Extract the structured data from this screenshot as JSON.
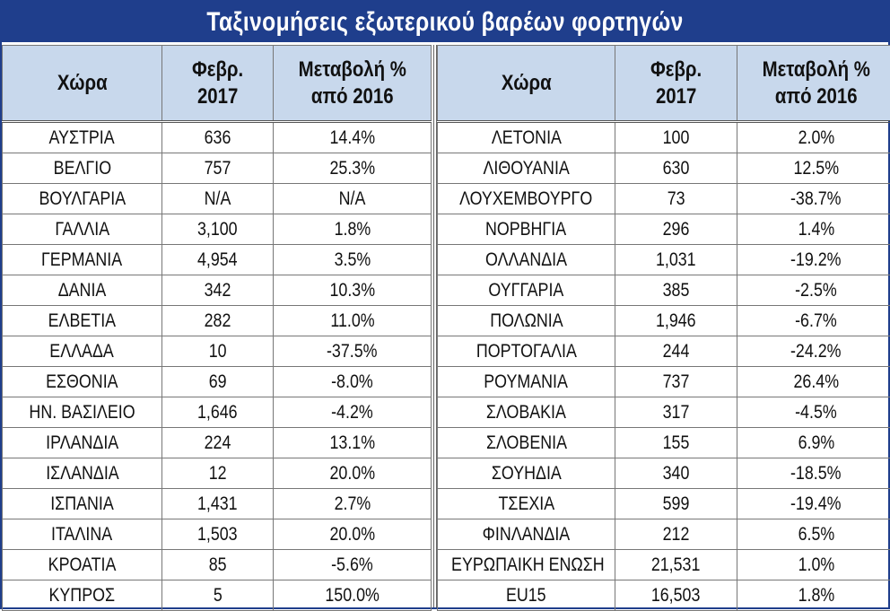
{
  "title": "Ταξινομήσεις εξωτερικού βαρέων φορτηγών",
  "headers": {
    "country": "Χώρα",
    "feb_line1": "Φεβρ.",
    "feb_line2": "2017",
    "change_line1": "Μεταβολή %",
    "change_line2": "από 2016"
  },
  "left_rows": [
    {
      "country": "ΑΥΣΤΡΙΑ",
      "feb": "636",
      "change": "14.4%"
    },
    {
      "country": "ΒΕΛΓΙΟ",
      "feb": "757",
      "change": "25.3%"
    },
    {
      "country": "ΒΟΥΛΓΑΡΙΑ",
      "feb": "N/A",
      "change": "N/A"
    },
    {
      "country": "ΓΑΛΛΙΑ",
      "feb": "3,100",
      "change": "1.8%"
    },
    {
      "country": "ΓΕΡΜΑΝΙΑ",
      "feb": "4,954",
      "change": "3.5%"
    },
    {
      "country": "ΔΑΝΙΑ",
      "feb": "342",
      "change": "10.3%"
    },
    {
      "country": "ΕΛΒΕΤΙΑ",
      "feb": "282",
      "change": "11.0%"
    },
    {
      "country": "ΕΛΛΑΔΑ",
      "feb": "10",
      "change": "-37.5%"
    },
    {
      "country": "ΕΣΘΟΝΙΑ",
      "feb": "69",
      "change": "-8.0%"
    },
    {
      "country": "ΗΝ. ΒΑΣΙΛΕΙΟ",
      "feb": "1,646",
      "change": "-4.2%"
    },
    {
      "country": "ΙΡΛΑΝΔΙΑ",
      "feb": "224",
      "change": "13.1%"
    },
    {
      "country": "ΙΣΛΑΝΔΙΑ",
      "feb": "12",
      "change": "20.0%"
    },
    {
      "country": "ΙΣΠΑΝΙΑ",
      "feb": "1,431",
      "change": "2.7%"
    },
    {
      "country": "ΙΤΑΛΙΝΑ",
      "feb": "1,503",
      "change": "20.0%"
    },
    {
      "country": "ΚΡΟΑΤΙΑ",
      "feb": "85",
      "change": "-5.6%"
    },
    {
      "country": "ΚΥΠΡΟΣ",
      "feb": "5",
      "change": "150.0%"
    }
  ],
  "right_rows": [
    {
      "country": "ΛΕΤΟΝΙΑ",
      "feb": "100",
      "change": "2.0%"
    },
    {
      "country": "ΛΙΘΟΥΑΝΙΑ",
      "feb": "630",
      "change": "12.5%"
    },
    {
      "country": "ΛΟΥΧΕΜΒΟΥΡΓΟ",
      "feb": "73",
      "change": "-38.7%"
    },
    {
      "country": "ΝΟΡΒΗΓΙΑ",
      "feb": "296",
      "change": "1.4%"
    },
    {
      "country": "ΟΛΛΑΝΔΙΑ",
      "feb": "1,031",
      "change": "-19.2%"
    },
    {
      "country": "ΟΥΓΓΑΡΙΑ",
      "feb": "385",
      "change": "-2.5%"
    },
    {
      "country": "ΠΟΛΩΝΙΑ",
      "feb": "1,946",
      "change": "-6.7%"
    },
    {
      "country": "ΠΟΡΤΟΓΑΛΙΑ",
      "feb": "244",
      "change": "-24.2%"
    },
    {
      "country": "ΡΟΥΜΑΝΙΑ",
      "feb": "737",
      "change": "26.4%"
    },
    {
      "country": "ΣΛΟΒΑΚΙΑ",
      "feb": "317",
      "change": "-4.5%"
    },
    {
      "country": "ΣΛΟΒΕΝΙΑ",
      "feb": "155",
      "change": "6.9%"
    },
    {
      "country": "ΣΟΥΗΔΙΑ",
      "feb": "340",
      "change": "-18.5%"
    },
    {
      "country": "ΤΣΕΧΙΑ",
      "feb": "599",
      "change": "-19.4%"
    },
    {
      "country": "ΦΙΝΛΑΝΔΙΑ",
      "feb": "212",
      "change": "6.5%"
    },
    {
      "country": "ΕΥΡΩΠΑΙΚΗ ΕΝΩΣΗ",
      "feb": "21,531",
      "change": "1.0%"
    },
    {
      "country": "EU15",
      "feb": "16,503",
      "change": "1.8%"
    }
  ],
  "colors": {
    "title_bg": "#1f3e8c",
    "header_bg": "#c8d8ec",
    "text": "#111111"
  }
}
